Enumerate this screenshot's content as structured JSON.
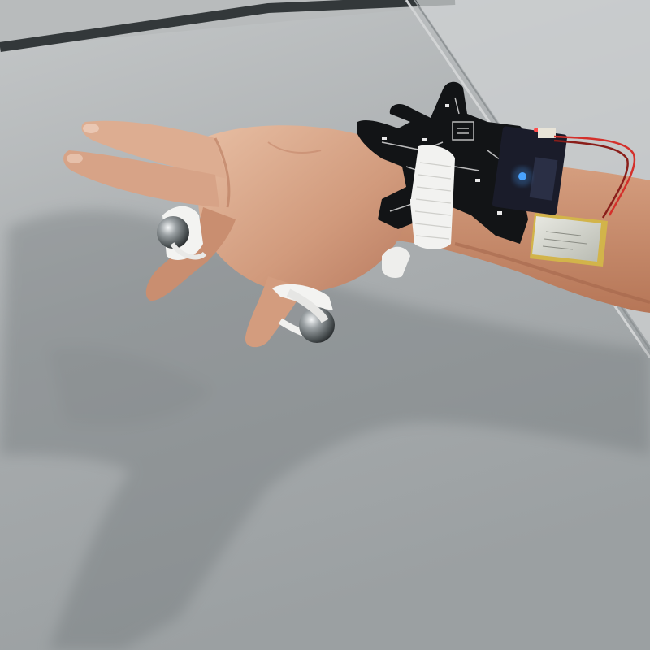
{
  "scene": {
    "description_visible_text": [],
    "palette": {
      "table_light": "#c9cccd",
      "table_mid": "#aeb2b4",
      "table_dark": "#8d9294",
      "table_seam": "#3f4446",
      "skin_light": "#e3b79c",
      "skin_mid": "#c98f72",
      "skin_dark": "#a86a50",
      "pcb_black": "#121416",
      "pcb_silk": "#e8e8e8",
      "strap_white": "#f2f2f0",
      "ball_steel": "#7d8285",
      "battery_silver": "#cfd1c8",
      "battery_gold": "#d2b44a",
      "wire_red": "#d4302b",
      "led_blue": "#4aa3ff"
    },
    "objects": [
      "table-surface",
      "hand",
      "forearm",
      "pcb-glove-board",
      "microcontroller-board",
      "lipo-battery",
      "velcro-strap",
      "finger-ring-ball-index",
      "finger-ring-ball-thumb"
    ]
  }
}
